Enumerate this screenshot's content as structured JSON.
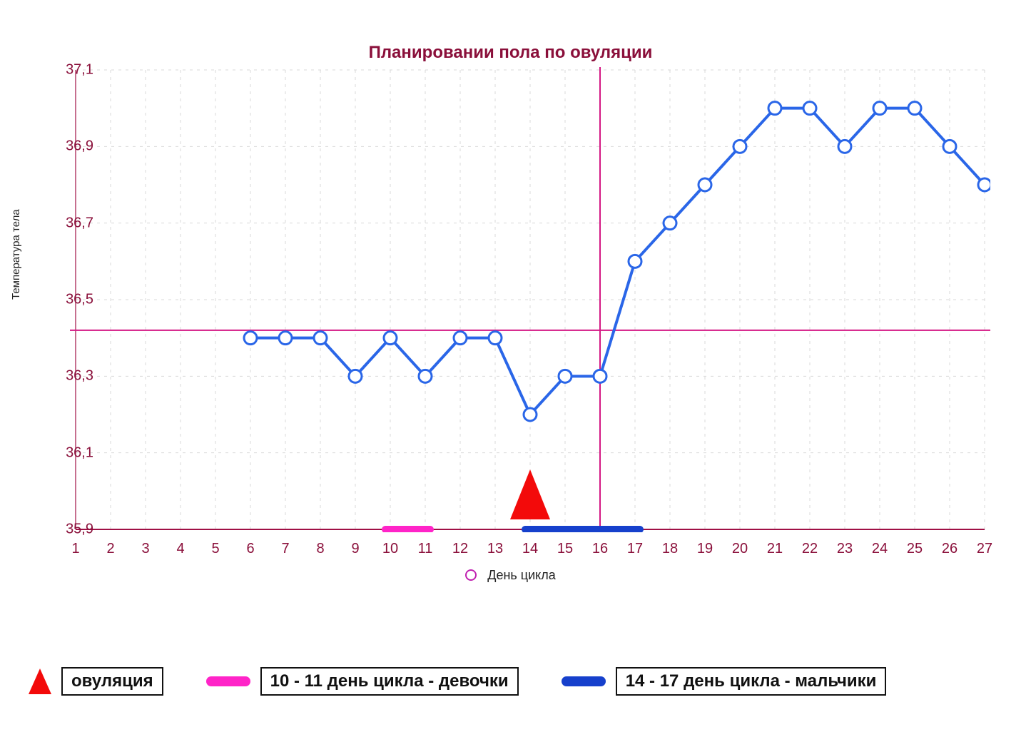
{
  "chart": {
    "type": "line",
    "title": "Планировании пола по овуляции",
    "ylabel": "Температура тела",
    "xlabel": "День цикла",
    "x_categories": [
      "1",
      "2",
      "3",
      "4",
      "5",
      "6",
      "7",
      "8",
      "9",
      "10",
      "11",
      "12",
      "13",
      "14",
      "15",
      "16",
      "17",
      "18",
      "19",
      "20",
      "21",
      "22",
      "23",
      "24",
      "25",
      "26",
      "27"
    ],
    "x_index_min": 1,
    "x_index_max": 27,
    "y_ticks": [
      35.9,
      36.1,
      36.3,
      36.5,
      36.7,
      36.9,
      37.1
    ],
    "y_tick_labels": [
      "35,9",
      "36,1",
      "36,3",
      "36,5",
      "36,7",
      "36,9",
      "37,1"
    ],
    "ylim": [
      35.9,
      37.1
    ],
    "series": {
      "x": [
        6,
        7,
        8,
        9,
        10,
        11,
        12,
        13,
        14,
        15,
        16,
        17,
        18,
        19,
        20,
        21,
        22,
        23,
        24,
        25,
        26,
        27
      ],
      "y": [
        36.4,
        36.4,
        36.4,
        36.3,
        36.4,
        36.3,
        36.4,
        36.4,
        36.2,
        36.3,
        36.3,
        36.6,
        36.7,
        36.8,
        36.9,
        37.0,
        37.0,
        36.9,
        37.0,
        37.0,
        36.9,
        36.8
      ]
    },
    "line_color": "#2a66e8",
    "line_width": 4,
    "marker_edge_color": "#2a66e8",
    "marker_fill_color": "#ffffff",
    "marker_radius": 9,
    "marker_stroke": 3,
    "axis_color": "#a01045",
    "grid_color": "#d9d9d9",
    "grid_dash": "4 6",
    "background_color": "#ffffff",
    "reference_line_y": 36.42,
    "reference_line_color": "#d41884",
    "vertical_line_x": 16,
    "vertical_line_color": "#d41884",
    "ovulation_marker_x": 14,
    "ovulation_marker_color": "#f30a0a",
    "girls_band": {
      "start": 10,
      "end": 11,
      "color": "#ff24c8",
      "thickness": 10
    },
    "boys_band": {
      "start": 14,
      "end": 17,
      "color": "#1640cc",
      "thickness": 10
    },
    "title_fontsize": 24,
    "tick_fontsize": 20,
    "legend_fontsize": 24
  },
  "legend": {
    "ovulation": "овуляция",
    "girls": "10 - 11 день цикла - девочки",
    "boys": "14 - 17 день цикла - мальчики"
  }
}
